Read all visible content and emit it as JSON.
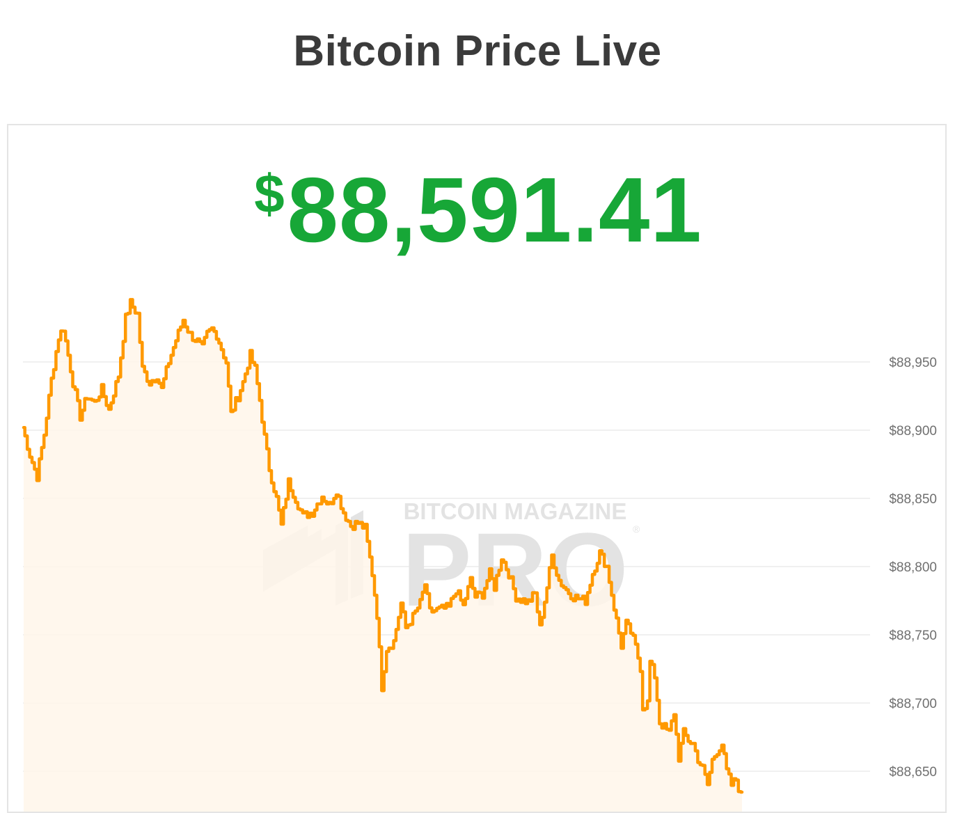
{
  "page": {
    "title": "Bitcoin Price Live"
  },
  "ticker": {
    "currency_symbol": "$",
    "price": "88,591.41",
    "color": "#17a737"
  },
  "watermark": {
    "line1": "BITCOIN MAGAZINE",
    "line2": "PRO",
    "mark": "®"
  },
  "colors": {
    "line": "#ff9900",
    "area": "#fff6ea",
    "grid": "#ececec",
    "watermark": "#e3e3e3"
  },
  "chart_data": {
    "type": "area",
    "title": "",
    "xlabel": "",
    "ylabel": "",
    "ylim": [
      88629,
      88997
    ],
    "y_ticks": [
      88950,
      88900,
      88850,
      88800,
      88750,
      88700,
      88650
    ],
    "y_tick_labels": [
      "$88,950",
      "$88,900",
      "$88,850",
      "$88,800",
      "$88,750",
      "$88,700",
      "$88,650"
    ],
    "x_points": 300,
    "anchors": [
      [
        0,
        88902
      ],
      [
        3,
        88882
      ],
      [
        6,
        88866
      ],
      [
        9,
        88897
      ],
      [
        12,
        88937
      ],
      [
        15,
        88968
      ],
      [
        17,
        88975
      ],
      [
        19,
        88955
      ],
      [
        21,
        88935
      ],
      [
        24,
        88910
      ],
      [
        27,
        88925
      ],
      [
        30,
        88920
      ],
      [
        33,
        88930
      ],
      [
        36,
        88915
      ],
      [
        40,
        88940
      ],
      [
        43,
        88982
      ],
      [
        45,
        88993
      ],
      [
        48,
        88985
      ],
      [
        50,
        88945
      ],
      [
        53,
        88935
      ],
      [
        56,
        88940
      ],
      [
        58,
        88930
      ],
      [
        61,
        88950
      ],
      [
        64,
        88966
      ],
      [
        67,
        88981
      ],
      [
        70,
        88970
      ],
      [
        73,
        88965
      ],
      [
        75,
        88960
      ],
      [
        77,
        88970
      ],
      [
        79,
        88974
      ],
      [
        81,
        88970
      ],
      [
        83,
        88960
      ],
      [
        85,
        88950
      ],
      [
        87,
        88912
      ],
      [
        90,
        88925
      ],
      [
        92,
        88935
      ],
      [
        95,
        88955
      ],
      [
        97,
        88945
      ],
      [
        99,
        88922
      ],
      [
        101,
        88895
      ],
      [
        103,
        88872
      ],
      [
        106,
        88850
      ],
      [
        108,
        88830
      ],
      [
        111,
        88862
      ],
      [
        114,
        88850
      ],
      [
        117,
        88837
      ],
      [
        121,
        88840
      ],
      [
        125,
        88852
      ],
      [
        128,
        88845
      ],
      [
        131,
        88856
      ],
      [
        134,
        88840
      ],
      [
        137,
        88830
      ],
      [
        140,
        88832
      ],
      [
        143,
        88828
      ],
      [
        146,
        88795
      ],
      [
        148,
        88765
      ],
      [
        150,
        88712
      ],
      [
        152,
        88740
      ],
      [
        155,
        88745
      ],
      [
        158,
        88773
      ],
      [
        160,
        88755
      ],
      [
        163,
        88763
      ],
      [
        166,
        88773
      ],
      [
        168,
        88787
      ],
      [
        170,
        88767
      ],
      [
        173,
        88768
      ],
      [
        178,
        88770
      ],
      [
        181,
        88783
      ],
      [
        184,
        88771
      ],
      [
        187,
        88790
      ],
      [
        189,
        88778
      ],
      [
        192,
        88780
      ],
      [
        195,
        88795
      ],
      [
        197,
        88785
      ],
      [
        200,
        88807
      ],
      [
        203,
        88795
      ],
      [
        206,
        88778
      ],
      [
        208,
        88776
      ],
      [
        211,
        88774
      ],
      [
        214,
        88780
      ],
      [
        216,
        88755
      ],
      [
        219,
        88785
      ],
      [
        221,
        88808
      ],
      [
        224,
        88790
      ],
      [
        227,
        88783
      ],
      [
        230,
        88778
      ],
      [
        233,
        88776
      ],
      [
        235,
        88775
      ],
      [
        238,
        88795
      ],
      [
        241,
        88810
      ],
      [
        244,
        88800
      ],
      [
        247,
        88770
      ],
      [
        250,
        88742
      ],
      [
        252,
        88758
      ],
      [
        254,
        88752
      ],
      [
        256,
        88741
      ],
      [
        258,
        88726
      ],
      [
        259,
        88697
      ],
      [
        261,
        88700
      ],
      [
        262,
        88730
      ],
      [
        264,
        88720
      ],
      [
        266,
        88686
      ],
      [
        268,
        88682
      ],
      [
        270,
        88678
      ],
      [
        272,
        88693
      ],
      [
        274,
        88660
      ],
      [
        276,
        88678
      ],
      [
        278,
        88673
      ],
      [
        280,
        88670
      ],
      [
        282,
        88659
      ],
      [
        284,
        88652
      ],
      [
        286,
        88640
      ],
      [
        288,
        88658
      ],
      [
        290,
        88665
      ],
      [
        292,
        88670
      ],
      [
        294,
        88650
      ],
      [
        296,
        88640
      ],
      [
        298,
        88644
      ],
      [
        300,
        88632
      ]
    ]
  }
}
